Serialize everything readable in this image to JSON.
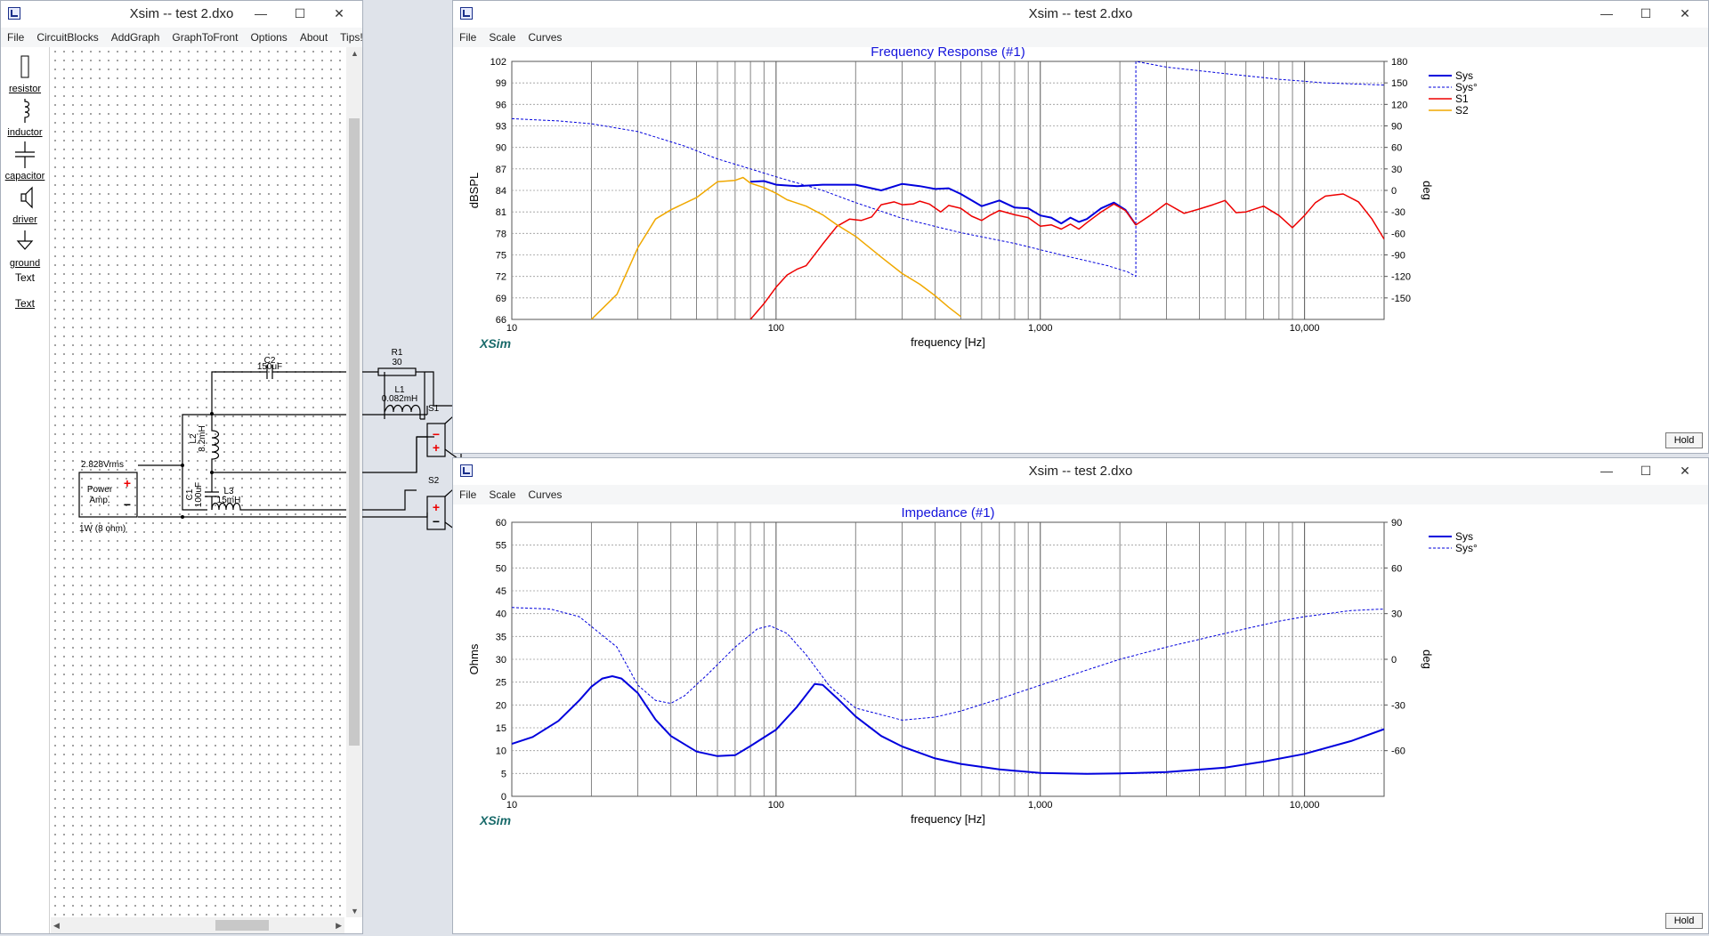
{
  "left_window": {
    "title": "Xsim -- test 2.dxo",
    "menu": [
      "File",
      "CircuitBlocks",
      "AddGraph",
      "GraphToFront",
      "Options",
      "About",
      "Tips!"
    ],
    "tools": [
      {
        "label": "resistor",
        "icon": "resistor-icon"
      },
      {
        "label": "inductor",
        "icon": "inductor-icon"
      },
      {
        "label": "capacitor",
        "icon": "capacitor-icon"
      },
      {
        "label": "driver",
        "icon": "driver-icon"
      },
      {
        "label": "ground",
        "icon": "ground-icon"
      },
      {
        "label": "Text",
        "icon": "text-tool"
      },
      {
        "label": "Text",
        "icon": "text-tool"
      }
    ],
    "circuit": {
      "c2_name": "C2",
      "c2_value": "150uF",
      "r1_name": "R1",
      "r1_value": "30",
      "l1_name": "L1",
      "l1_value": "0.082mH",
      "s1": "S1",
      "s2": "S2",
      "l2_name": "L2",
      "l2_value": "8.2mH",
      "c1_name": "C1",
      "c1_value": "100uF",
      "l3_name": "L3",
      "l3_value": "15mH",
      "amp_voltage": "2.828Vrms",
      "amp_label1": "Power",
      "amp_label2": "Amp.",
      "amp_power": "1W (8 ohm)",
      "plus": "+",
      "minus": "−"
    }
  },
  "freq_window": {
    "title": "Xsim -- test 2.dxo",
    "menu": [
      "File",
      "Scale",
      "Curves"
    ],
    "hold_label": "Hold",
    "watermark": "XSim"
  },
  "imp_window": {
    "title": "Xsim -- test 2.dxo",
    "menu": [
      "File",
      "Scale",
      "Curves"
    ],
    "hold_label": "Hold",
    "watermark": "XSim"
  },
  "window_buttons": {
    "minimize": "—",
    "maximize": "☐",
    "close": "✕"
  },
  "colors": {
    "sys": "#0000dd",
    "s1": "#ee0000",
    "s2": "#f0a800",
    "title": "#1414dc",
    "watermark": "#1a6b6b"
  },
  "chart_data": [
    {
      "type": "line",
      "title": "Frequency Response (#1)",
      "xlabel": "frequency [Hz]",
      "ylabel": "dBSPL",
      "y2label": "deg",
      "xscale": "log",
      "xlim": [
        10,
        20000
      ],
      "ylim": [
        66,
        102
      ],
      "y2lim": [
        -180,
        180
      ],
      "yticks": [
        66,
        69,
        72,
        75,
        78,
        81,
        84,
        87,
        90,
        93,
        96,
        99,
        102
      ],
      "y2ticks": [
        -150,
        -120,
        -90,
        -60,
        -30,
        0,
        30,
        60,
        90,
        120,
        150,
        180
      ],
      "xticklabels": [
        {
          "v": 10,
          "t": "10"
        },
        {
          "v": 100,
          "t": "100"
        },
        {
          "v": 1000,
          "t": "1,000"
        },
        {
          "v": 10000,
          "t": "10,000"
        }
      ],
      "grid": true,
      "legend": "top-right",
      "series": [
        {
          "name": "Sys",
          "color": "#0000dd",
          "width": 2,
          "dash": false,
          "axis": "left",
          "points": [
            [
              80,
              85.2
            ],
            [
              90,
              85.3
            ],
            [
              100,
              84.8
            ],
            [
              120,
              84.6
            ],
            [
              150,
              84.8
            ],
            [
              200,
              84.8
            ],
            [
              250,
              84
            ],
            [
              300,
              84.9
            ],
            [
              350,
              84.6
            ],
            [
              400,
              84.2
            ],
            [
              450,
              84.3
            ],
            [
              500,
              83.5
            ],
            [
              600,
              81.8
            ],
            [
              700,
              82.6
            ],
            [
              800,
              81.6
            ],
            [
              900,
              81.5
            ],
            [
              1000,
              80.5
            ],
            [
              1100,
              80.2
            ],
            [
              1200,
              79.4
            ],
            [
              1300,
              80.2
            ],
            [
              1400,
              79.6
            ],
            [
              1500,
              80
            ],
            [
              1700,
              81.5
            ],
            [
              1900,
              82.3
            ],
            [
              2100,
              81.3
            ],
            [
              2300,
              79.2
            ]
          ]
        },
        {
          "name": "Sys°",
          "color": "#0000dd",
          "width": 1,
          "dash": true,
          "axis": "right",
          "points": [
            [
              10,
              100
            ],
            [
              15,
              97
            ],
            [
              20,
              93
            ],
            [
              30,
              82
            ],
            [
              45,
              62
            ],
            [
              60,
              44
            ],
            [
              80,
              30
            ],
            [
              100,
              19
            ],
            [
              150,
              0
            ],
            [
              200,
              -17
            ],
            [
              300,
              -39
            ],
            [
              500,
              -59
            ],
            [
              800,
              -74
            ],
            [
              1200,
              -90
            ],
            [
              1800,
              -105
            ],
            [
              2150,
              -114
            ],
            [
              2300,
              -120
            ],
            [
              2300,
              180
            ],
            [
              3000,
              172
            ],
            [
              5000,
              163
            ],
            [
              8000,
              155
            ],
            [
              12000,
              150
            ],
            [
              20000,
              147
            ]
          ]
        },
        {
          "name": "S1",
          "color": "#ee0000",
          "width": 1.5,
          "dash": false,
          "axis": "left",
          "points": [
            [
              80,
              66
            ],
            [
              90,
              68.2
            ],
            [
              100,
              70.5
            ],
            [
              110,
              72.2
            ],
            [
              120,
              73
            ],
            [
              130,
              73.5
            ],
            [
              150,
              76.5
            ],
            [
              170,
              79
            ],
            [
              190,
              80
            ],
            [
              210,
              79.8
            ],
            [
              230,
              80.3
            ],
            [
              250,
              82
            ],
            [
              280,
              82.4
            ],
            [
              300,
              82
            ],
            [
              330,
              82.1
            ],
            [
              350,
              82.5
            ],
            [
              380,
              82.1
            ],
            [
              420,
              81
            ],
            [
              450,
              81.9
            ],
            [
              500,
              81.5
            ],
            [
              550,
              80.4
            ],
            [
              600,
              79.8
            ],
            [
              650,
              80.6
            ],
            [
              700,
              81.2
            ],
            [
              800,
              80.6
            ],
            [
              900,
              80.2
            ],
            [
              1000,
              79
            ],
            [
              1100,
              79.2
            ],
            [
              1200,
              78.6
            ],
            [
              1300,
              79.3
            ],
            [
              1400,
              78.6
            ],
            [
              1500,
              79.5
            ],
            [
              1700,
              81
            ],
            [
              1900,
              82.1
            ],
            [
              2100,
              81.2
            ],
            [
              2300,
              79.2
            ],
            [
              2600,
              80.5
            ],
            [
              3000,
              82.2
            ],
            [
              3500,
              80.8
            ],
            [
              4000,
              81.4
            ],
            [
              4500,
              82
            ],
            [
              5000,
              82.6
            ],
            [
              5500,
              80.9
            ],
            [
              6000,
              81
            ],
            [
              7000,
              81.8
            ],
            [
              8000,
              80.5
            ],
            [
              9000,
              78.8
            ],
            [
              10000,
              80.5
            ],
            [
              11000,
              82.3
            ],
            [
              12000,
              83.2
            ],
            [
              14000,
              83.5
            ],
            [
              16000,
              82.4
            ],
            [
              18000,
              80
            ],
            [
              20000,
              77.2
            ]
          ]
        },
        {
          "name": "S2",
          "color": "#f0a800",
          "width": 1.5,
          "dash": false,
          "axis": "left",
          "points": [
            [
              20,
              66
            ],
            [
              25,
              69.5
            ],
            [
              30,
              76
            ],
            [
              35,
              80
            ],
            [
              40,
              81.3
            ],
            [
              50,
              83
            ],
            [
              60,
              85.2
            ],
            [
              70,
              85.4
            ],
            [
              75,
              85.8
            ],
            [
              80,
              85
            ],
            [
              90,
              84.4
            ],
            [
              100,
              83.6
            ],
            [
              110,
              82.7
            ],
            [
              130,
              81.8
            ],
            [
              150,
              80.6
            ],
            [
              170,
              79.2
            ],
            [
              200,
              77.6
            ],
            [
              250,
              74.7
            ],
            [
              300,
              72.4
            ],
            [
              350,
              70.9
            ],
            [
              400,
              69.3
            ],
            [
              450,
              67.7
            ],
            [
              500,
              66.4
            ]
          ]
        }
      ]
    },
    {
      "type": "line",
      "title": "Impedance (#1)",
      "xlabel": "frequency [Hz]",
      "ylabel": "Ohms",
      "y2label": "deg",
      "xscale": "log",
      "xlim": [
        10,
        20000
      ],
      "ylim": [
        0,
        60
      ],
      "y2lim": [
        -90,
        90
      ],
      "yticks": [
        0,
        5,
        10,
        15,
        20,
        25,
        30,
        35,
        40,
        45,
        50,
        55,
        60
      ],
      "y2ticks": [
        -60,
        -30,
        0,
        30,
        60,
        90
      ],
      "xticklabels": [
        {
          "v": 10,
          "t": "10"
        },
        {
          "v": 100,
          "t": "100"
        },
        {
          "v": 1000,
          "t": "1,000"
        },
        {
          "v": 10000,
          "t": "10,000"
        }
      ],
      "grid": true,
      "legend": "top-right",
      "series": [
        {
          "name": "Sys",
          "color": "#0000dd",
          "width": 2,
          "dash": false,
          "axis": "left",
          "points": [
            [
              10,
              11.5
            ],
            [
              12,
              13
            ],
            [
              15,
              16.5
            ],
            [
              18,
              21
            ],
            [
              20,
              24
            ],
            [
              22,
              25.8
            ],
            [
              24,
              26.3
            ],
            [
              26,
              25.8
            ],
            [
              30,
              22.6
            ],
            [
              35,
              16.8
            ],
            [
              40,
              13.2
            ],
            [
              50,
              9.8
            ],
            [
              60,
              8.8
            ],
            [
              70,
              9
            ],
            [
              80,
              11
            ],
            [
              100,
              14.6
            ],
            [
              120,
              19.6
            ],
            [
              140,
              24.6
            ],
            [
              150,
              24.4
            ],
            [
              170,
              21.5
            ],
            [
              200,
              17.5
            ],
            [
              250,
              13.2
            ],
            [
              300,
              10.9
            ],
            [
              400,
              8.3
            ],
            [
              500,
              7.1
            ],
            [
              700,
              5.9
            ],
            [
              1000,
              5.1
            ],
            [
              1500,
              4.9
            ],
            [
              2000,
              5
            ],
            [
              3000,
              5.3
            ],
            [
              5000,
              6.3
            ],
            [
              7000,
              7.6
            ],
            [
              10000,
              9.3
            ],
            [
              15000,
              12.1
            ],
            [
              20000,
              14.7
            ]
          ]
        },
        {
          "name": "Sys°",
          "color": "#0000dd",
          "width": 1,
          "dash": true,
          "axis": "right",
          "points": [
            [
              10,
              34
            ],
            [
              14,
              33
            ],
            [
              18,
              28
            ],
            [
              25,
              8
            ],
            [
              30,
              -17
            ],
            [
              35,
              -27
            ],
            [
              40,
              -29
            ],
            [
              45,
              -24
            ],
            [
              55,
              -10
            ],
            [
              70,
              8
            ],
            [
              85,
              20
            ],
            [
              95,
              22
            ],
            [
              110,
              17
            ],
            [
              130,
              3
            ],
            [
              160,
              -18
            ],
            [
              200,
              -32
            ],
            [
              300,
              -40
            ],
            [
              400,
              -38
            ],
            [
              500,
              -34
            ],
            [
              700,
              -26
            ],
            [
              1000,
              -17
            ],
            [
              2000,
              0
            ],
            [
              3000,
              8
            ],
            [
              5000,
              17
            ],
            [
              8000,
              25
            ],
            [
              10000,
              28
            ],
            [
              15000,
              32
            ],
            [
              20000,
              33
            ]
          ]
        }
      ]
    }
  ]
}
